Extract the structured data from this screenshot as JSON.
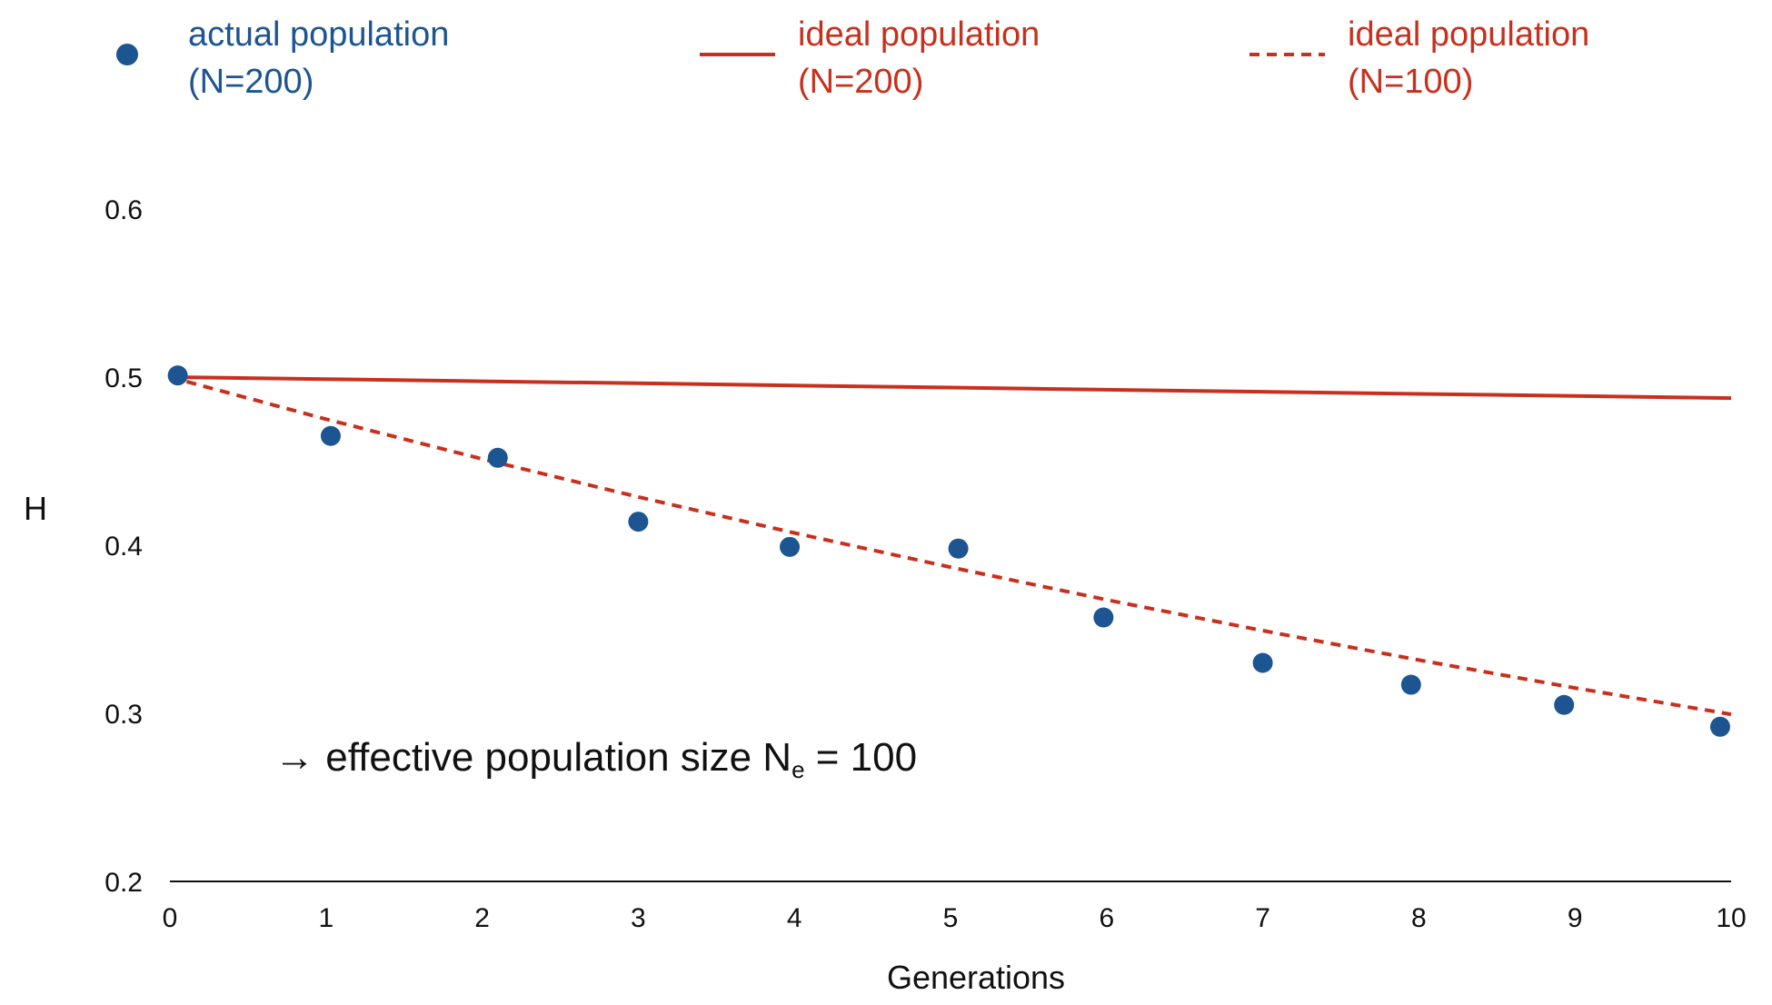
{
  "chart_data": {
    "type": "line",
    "xlabel": "Generations",
    "ylabel": "H",
    "xlim": [
      0,
      10
    ],
    "ylim": [
      0.2,
      0.6
    ],
    "xticks": [
      "0",
      "1",
      "2",
      "3",
      "4",
      "5",
      "6",
      "7",
      "8",
      "9",
      "10"
    ],
    "yticks": [
      "0.2",
      "0.3",
      "0.4",
      "0.5",
      "0.6"
    ],
    "series": [
      {
        "name": "actual population (N=200)",
        "legend_line1": "actual population",
        "legend_line2": "(N=200)",
        "style": "points",
        "color": "#1c5591",
        "x": [
          0.05,
          1.03,
          2.1,
          3.0,
          3.97,
          5.05,
          5.98,
          7.0,
          7.95,
          8.93,
          9.93
        ],
        "y": [
          0.501,
          0.465,
          0.452,
          0.414,
          0.399,
          0.398,
          0.357,
          0.33,
          0.317,
          0.305,
          0.292
        ]
      },
      {
        "name": "ideal population (N=200)",
        "legend_line1": "ideal population",
        "legend_line2": "(N=200)",
        "style": "solid",
        "color": "#c8301e",
        "x": [
          0,
          1,
          2,
          3,
          4,
          5,
          6,
          7,
          8,
          9,
          10
        ],
        "y": [
          0.5,
          0.4988,
          0.4975,
          0.4963,
          0.495,
          0.4938,
          0.4925,
          0.4913,
          0.49,
          0.4888,
          0.4875
        ]
      },
      {
        "name": "ideal population (N=100)",
        "legend_line1": "ideal population",
        "legend_line2": "(N=100)",
        "style": "dashed",
        "color": "#c8301e",
        "x": [
          0,
          1,
          2,
          3,
          4,
          5,
          6,
          7,
          8,
          9,
          10
        ],
        "y": [
          0.5,
          0.475,
          0.4513,
          0.4287,
          0.4073,
          0.3869,
          0.3675,
          0.3492,
          0.3317,
          0.3151,
          0.2994
        ]
      }
    ],
    "annotation": {
      "prefix": "→ effective population size N",
      "subscript": "e",
      "suffix": " = 100"
    }
  }
}
